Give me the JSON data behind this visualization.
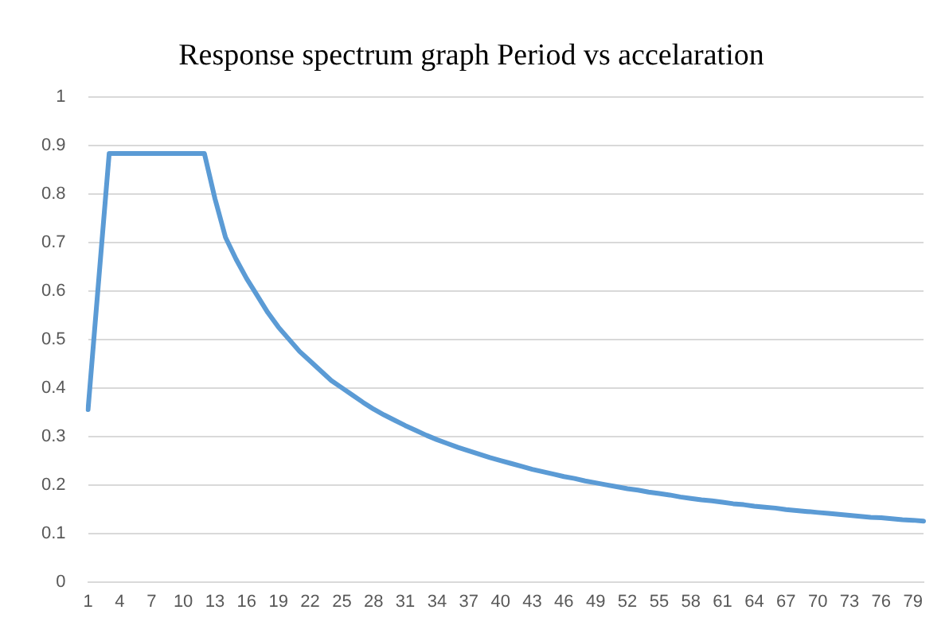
{
  "chart_data": {
    "type": "line",
    "title": "Response spectrum graph Period vs accelaration",
    "categories": [
      "1",
      null,
      null,
      "4",
      null,
      null,
      "7",
      null,
      null,
      "10",
      null,
      null,
      "13",
      null,
      null,
      "16",
      null,
      null,
      "19",
      null,
      null,
      "22",
      null,
      null,
      "25",
      null,
      null,
      "28",
      null,
      null,
      "31",
      null,
      null,
      "34",
      null,
      null,
      "37",
      null,
      null,
      "40",
      null,
      null,
      "43",
      null,
      null,
      "46",
      null,
      null,
      "49",
      null,
      null,
      "52",
      null,
      null,
      "55",
      null,
      null,
      "58",
      null,
      null,
      "61",
      null,
      null,
      "64",
      null,
      null,
      "67",
      null,
      null,
      "70",
      null,
      null,
      "73",
      null,
      null,
      "76",
      null,
      null,
      "79",
      null
    ],
    "series": [
      {
        "color": "#5b9bd5",
        "values": [
          0.355,
          0.62,
          0.883,
          0.883,
          0.883,
          0.883,
          0.883,
          0.883,
          0.883,
          0.883,
          0.883,
          0.883,
          0.79,
          0.71,
          0.665,
          0.625,
          0.59,
          0.555,
          0.525,
          0.5,
          0.475,
          0.455,
          0.435,
          0.415,
          0.4,
          0.385,
          0.37,
          0.356,
          0.344,
          0.333,
          0.322,
          0.312,
          0.302,
          0.293,
          0.285,
          0.277,
          0.27,
          0.263,
          0.256,
          0.25,
          0.244,
          0.238,
          0.232,
          0.227,
          0.222,
          0.217,
          0.213,
          0.208,
          0.204,
          0.2,
          0.196,
          0.192,
          0.189,
          0.185,
          0.182,
          0.179,
          0.175,
          0.172,
          0.169,
          0.167,
          0.164,
          0.161,
          0.159,
          0.156,
          0.154,
          0.152,
          0.149,
          0.147,
          0.145,
          0.143,
          0.141,
          0.139,
          0.137,
          0.135,
          0.133,
          0.132,
          0.13,
          0.128,
          0.127,
          0.125
        ]
      }
    ],
    "ylim": [
      0,
      1
    ],
    "yticks": [
      0,
      0.1,
      0.2,
      0.3,
      0.4,
      0.5,
      0.6,
      0.7,
      0.8,
      0.9,
      1
    ],
    "grid": "y",
    "legend": false,
    "marker": "none",
    "line_style": "solid"
  }
}
